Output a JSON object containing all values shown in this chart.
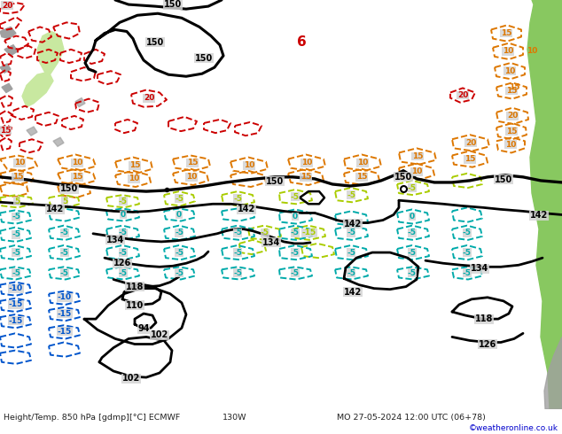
{
  "title": "Height/Temp. 850 hPa [gdmp][°C] ECMWF",
  "subtitle": "MO 27-05-2024 12:00 UTC (06+78)",
  "credit": "©weatheronline.co.uk",
  "sea_color": "#d4d4d4",
  "land_nz_color": "#b8b8b8",
  "land_nz_green": "#c8e8a0",
  "land_sa_color": "#88c860",
  "land_gray_color": "#a0a0a0",
  "grid_color": "#ffffff",
  "bottom_bar_color": "#d0d0d0",
  "bottom_text_color": "#333333",
  "credit_color": "#0000cc",
  "figsize": [
    6.34,
    4.9
  ],
  "dpi": 100
}
